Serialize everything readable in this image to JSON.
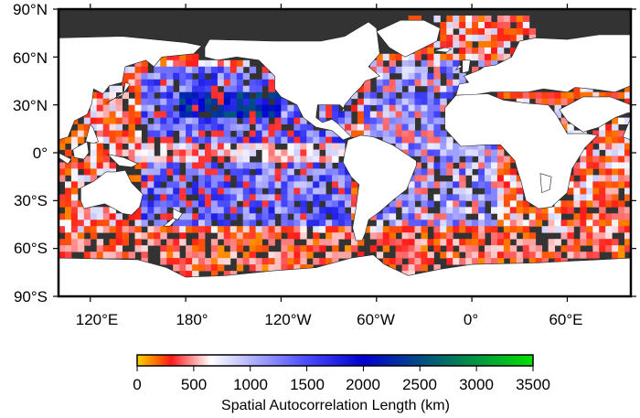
{
  "map": {
    "lat_labels": [
      "90°N",
      "60°N",
      "30°N",
      "0°",
      "30°S",
      "60°S",
      "90°S"
    ],
    "lon_labels": [
      "120°E",
      "180°",
      "120°W",
      "60°W",
      "0°",
      "60°E"
    ],
    "colors": {
      "land": "#ffffff",
      "no_data": "#333333",
      "frame": "#000000"
    }
  },
  "colorbar": {
    "title": "Spatial Autocorrelation Length (km)",
    "tick_labels": [
      "0",
      "500",
      "1000",
      "1500",
      "2000",
      "2500",
      "3000",
      "3500"
    ],
    "tick_values": [
      0,
      500,
      1000,
      1500,
      2000,
      2500,
      3000,
      3500
    ],
    "range": [
      0,
      3500
    ],
    "stops": [
      {
        "value": 0,
        "color": "#ffd400"
      },
      {
        "value": 150,
        "color": "#ff7a00"
      },
      {
        "value": 300,
        "color": "#ff1a1a"
      },
      {
        "value": 650,
        "color": "#ffffff"
      },
      {
        "value": 1500,
        "color": "#4a4aff"
      },
      {
        "value": 2000,
        "color": "#0000d0"
      },
      {
        "value": 2700,
        "color": "#006a6a"
      },
      {
        "value": 3500,
        "color": "#00e000"
      }
    ]
  }
}
